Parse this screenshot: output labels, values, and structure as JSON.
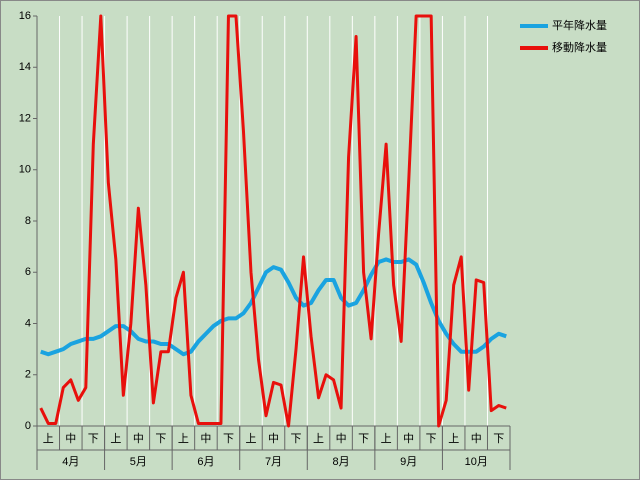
{
  "chart_data": {
    "type": "line",
    "categories": [
      null,
      "上",
      null,
      null,
      "中",
      null,
      null,
      "下",
      null,
      null,
      "上",
      null,
      null,
      "中",
      null,
      null,
      "下",
      null,
      null,
      "上",
      null,
      null,
      "中",
      null,
      null,
      "下",
      null,
      null,
      "上",
      null,
      null,
      "中",
      null,
      null,
      "下",
      null,
      null,
      "上",
      null,
      null,
      "中",
      null,
      null,
      "下",
      null,
      null,
      "上",
      null,
      null,
      "中",
      null,
      null,
      "下",
      null,
      null,
      "上",
      null,
      null,
      "中",
      null,
      null,
      "下",
      null
    ],
    "months": [
      "4月",
      "5月",
      "6月",
      "7月",
      "8月",
      "9月",
      "10月"
    ],
    "series": [
      {
        "name": "平年降水量",
        "color": "#1aa3e0",
        "values": [
          2.9,
          2.8,
          2.9,
          3.0,
          3.2,
          3.3,
          3.4,
          3.4,
          3.5,
          3.7,
          3.9,
          3.9,
          3.7,
          3.4,
          3.3,
          3.3,
          3.2,
          3.2,
          3.0,
          2.8,
          2.9,
          3.3,
          3.6,
          3.9,
          4.1,
          4.2,
          4.2,
          4.4,
          4.8,
          5.4,
          6.0,
          6.2,
          6.1,
          5.6,
          5.0,
          4.7,
          4.8,
          5.3,
          5.7,
          5.7,
          5.0,
          4.7,
          4.8,
          5.3,
          5.9,
          6.4,
          6.5,
          6.4,
          6.4,
          6.5,
          6.3,
          5.6,
          4.8,
          4.1,
          3.6,
          3.2,
          2.9,
          2.9,
          2.9,
          3.1,
          3.4,
          3.6,
          3.5
        ]
      },
      {
        "name": "移動降水量",
        "color": "#e8100c",
        "values": [
          0.7,
          0.1,
          0.1,
          1.5,
          1.8,
          1.0,
          1.5,
          11,
          16,
          9.5,
          6.5,
          1.2,
          4,
          8.5,
          5.5,
          0.9,
          2.9,
          2.9,
          5,
          6,
          1.2,
          0.1,
          0.1,
          0.1,
          0.1,
          16,
          16,
          11.5,
          6,
          2.6,
          0.4,
          1.7,
          1.6,
          0,
          3,
          6.6,
          3.5,
          1.1,
          2,
          1.8,
          0.7,
          10.5,
          15.2,
          6,
          3.4,
          7.5,
          11,
          5.5,
          3.3,
          9.5,
          16,
          16,
          16,
          0,
          1,
          5.5,
          6.6,
          1.4,
          5.7,
          5.6,
          0.6,
          0.8,
          0.7
        ]
      }
    ],
    "ylim": [
      0,
      16
    ],
    "yticks": [
      0,
      2,
      4,
      6,
      8,
      10,
      12,
      14,
      16
    ],
    "grid": true,
    "legend": "top-right"
  }
}
